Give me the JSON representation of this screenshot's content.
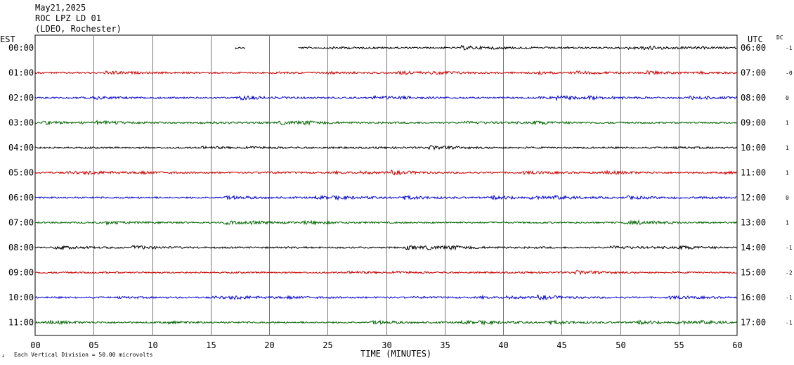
{
  "header": {
    "date": "May21,2025",
    "station": "ROC LPZ LD 01",
    "network": "(LDEO, Rochester)"
  },
  "left_axis_title": "EST",
  "right_axis_title": "UTC",
  "dc_title": "DC",
  "x_axis_title": "TIME (MINUTES)",
  "footer": {
    "mark": "↓",
    "text": "Each Vertical Division =   50.00 microvolts"
  },
  "colors": [
    "#000000",
    "#cc0000",
    "#0000cc",
    "#006600"
  ],
  "chart_data": {
    "type": "line",
    "title": "May21,2025",
    "xlabel": "TIME (MINUTES)",
    "xlim": [
      0,
      60
    ],
    "x_ticks": [
      "00",
      "05",
      "10",
      "15",
      "20",
      "25",
      "30",
      "35",
      "40",
      "45",
      "50",
      "55",
      "60"
    ],
    "x_tick_values": [
      0,
      5,
      10,
      15,
      20,
      25,
      30,
      35,
      40,
      45,
      50,
      55,
      60
    ],
    "grid": true,
    "rows": [
      {
        "est": "00:00",
        "utc": "06:00",
        "dc": "-1",
        "color": "#000000",
        "segments": [
          [
            17.1,
            18.0
          ],
          [
            22.5,
            60
          ]
        ]
      },
      {
        "est": "01:00",
        "utc": "07:00",
        "dc": "-0",
        "color": "#cc0000",
        "segments": [
          [
            0,
            60
          ]
        ]
      },
      {
        "est": "02:00",
        "utc": "08:00",
        "dc": "0",
        "color": "#0000cc",
        "segments": [
          [
            0,
            60
          ]
        ]
      },
      {
        "est": "03:00",
        "utc": "09:00",
        "dc": "1",
        "color": "#006600",
        "segments": [
          [
            0,
            60
          ]
        ]
      },
      {
        "est": "04:00",
        "utc": "10:00",
        "dc": "1",
        "color": "#000000",
        "segments": [
          [
            0,
            60
          ]
        ]
      },
      {
        "est": "05:00",
        "utc": "11:00",
        "dc": "1",
        "color": "#cc0000",
        "segments": [
          [
            0,
            60
          ]
        ]
      },
      {
        "est": "06:00",
        "utc": "12:00",
        "dc": "0",
        "color": "#0000cc",
        "segments": [
          [
            0,
            60
          ]
        ]
      },
      {
        "est": "07:00",
        "utc": "13:00",
        "dc": "1",
        "color": "#006600",
        "segments": [
          [
            0,
            60
          ]
        ]
      },
      {
        "est": "08:00",
        "utc": "14:00",
        "dc": "-1",
        "color": "#000000",
        "segments": [
          [
            0,
            60
          ]
        ]
      },
      {
        "est": "09:00",
        "utc": "15:00",
        "dc": "-2",
        "color": "#cc0000",
        "segments": [
          [
            0,
            60
          ]
        ]
      },
      {
        "est": "10:00",
        "utc": "16:00",
        "dc": "-1",
        "color": "#0000cc",
        "segments": [
          [
            0,
            60
          ]
        ]
      },
      {
        "est": "11:00",
        "utc": "17:00",
        "dc": "-1",
        "color": "#006600",
        "segments": [
          [
            0,
            60
          ]
        ]
      }
    ]
  }
}
